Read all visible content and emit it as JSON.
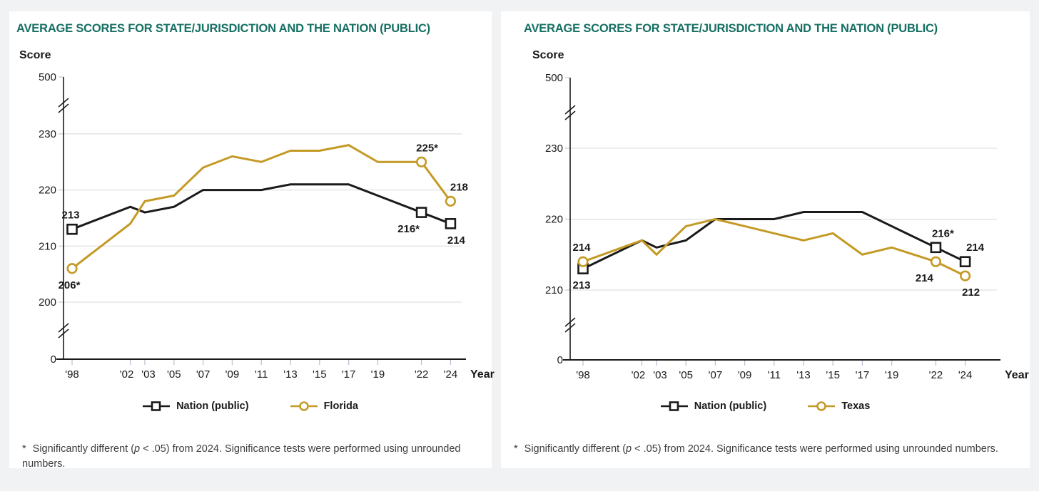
{
  "page": {
    "background": "#f1f2f4",
    "panel_background": "#ffffff"
  },
  "colors": {
    "title_teal": "#166f63",
    "gold": "#c49a26",
    "line_black": "#1a1a1a",
    "gridline": "#d8d8d8",
    "axis": "#1a1a1a",
    "x_tick": "#b9c3d2",
    "y_tick_stub": "#c8cdd4",
    "footnote_text": "#3e3e3e"
  },
  "charts": [
    {
      "title": "AVERAGE SCORES FOR STATE/JURISDICTION AND THE NATION (PUBLIC)",
      "y_axis_label": "Score",
      "x_axis_label": "Year",
      "chart_data": {
        "type": "line",
        "broken_y_axis": true,
        "y_ticks": [
          0,
          200,
          210,
          220,
          230,
          500
        ],
        "y_gridlines": [
          200,
          210,
          220,
          230
        ],
        "x": [
          1998,
          2002,
          2003,
          2005,
          2007,
          2009,
          2011,
          2013,
          2015,
          2017,
          2019,
          2022,
          2024
        ],
        "x_tick_labels": [
          "'98",
          "'02",
          "'03",
          "'05",
          "'07",
          "'09",
          "'11",
          "'13",
          "'15",
          "'17",
          "'19",
          "'22",
          "'24"
        ],
        "marker_years": [
          1998,
          2022,
          2024
        ],
        "series": [
          {
            "name": "Nation (public)",
            "marker": "square",
            "color": "#1a1a1a",
            "values": [
              213,
              217,
              216,
              217,
              220,
              220,
              220,
              221,
              221,
              221,
              219,
              216,
              214
            ]
          },
          {
            "name": "Florida",
            "marker": "circle",
            "color": "#c49a26",
            "values": [
              206,
              214,
              218,
              219,
              224,
              226,
              225,
              227,
              227,
              228,
              225,
              225,
              218
            ]
          }
        ],
        "annotations": [
          {
            "series": 0,
            "year": 1998,
            "text": "213",
            "position": "above",
            "dx": -2
          },
          {
            "series": 1,
            "year": 1998,
            "text": "206*",
            "position": "below",
            "dx": -4
          },
          {
            "series": 1,
            "year": 2022,
            "text": "225*",
            "position": "above",
            "dx": 8
          },
          {
            "series": 0,
            "year": 2022,
            "text": "216*",
            "position": "below",
            "dx": -18
          },
          {
            "series": 1,
            "year": 2024,
            "text": "218",
            "position": "above",
            "dx": 12
          },
          {
            "series": 0,
            "year": 2024,
            "text": "214",
            "position": "below",
            "dx": 8
          }
        ]
      },
      "legend": [
        {
          "label": "Nation (public)",
          "marker": "square",
          "color": "#1a1a1a"
        },
        {
          "label": "Florida",
          "marker": "circle",
          "color": "#c49a26"
        }
      ],
      "footnote": {
        "star": "*",
        "text_before_italic": "Significantly different (",
        "italic": "p",
        "text_after_italic": " < .05) from 2024. Significance tests were performed using unrounded numbers."
      }
    },
    {
      "title": "AVERAGE SCORES FOR STATE/JURISDICTION AND THE NATION (PUBLIC)",
      "y_axis_label": "Score",
      "x_axis_label": "Year",
      "chart_data": {
        "type": "line",
        "broken_y_axis": true,
        "y_ticks": [
          0,
          210,
          220,
          230,
          500
        ],
        "y_gridlines": [
          210,
          220,
          230
        ],
        "x": [
          1998,
          2002,
          2003,
          2005,
          2007,
          2009,
          2011,
          2013,
          2015,
          2017,
          2019,
          2022,
          2024
        ],
        "x_tick_labels": [
          "'98",
          "'02",
          "'03",
          "'05",
          "'07",
          "'09",
          "'11",
          "'13",
          "'15",
          "'17",
          "'19",
          "'22",
          "'24"
        ],
        "marker_years": [
          1998,
          2022,
          2024
        ],
        "series": [
          {
            "name": "Nation (public)",
            "marker": "square",
            "color": "#1a1a1a",
            "values": [
              213,
              217,
              216,
              217,
              220,
              220,
              220,
              221,
              221,
              221,
              219,
              216,
              214
            ]
          },
          {
            "name": "Texas",
            "marker": "circle",
            "color": "#c49a26",
            "values": [
              214,
              217,
              215,
              219,
              220,
              219,
              218,
              217,
              218,
              215,
              216,
              214,
              212
            ]
          }
        ],
        "annotations": [
          {
            "series": 1,
            "year": 1998,
            "text": "214",
            "position": "above",
            "dx": -2
          },
          {
            "series": 0,
            "year": 1998,
            "text": "213",
            "position": "below",
            "dx": -2
          },
          {
            "series": 0,
            "year": 2022,
            "text": "216*",
            "position": "above",
            "dx": 10
          },
          {
            "series": 1,
            "year": 2022,
            "text": "214",
            "position": "below",
            "dx": -16
          },
          {
            "series": 0,
            "year": 2024,
            "text": "214",
            "position": "above",
            "dx": 14
          },
          {
            "series": 1,
            "year": 2024,
            "text": "212",
            "position": "below",
            "dx": 8
          }
        ]
      },
      "legend": [
        {
          "label": "Nation (public)",
          "marker": "square",
          "color": "#1a1a1a"
        },
        {
          "label": "Texas",
          "marker": "circle",
          "color": "#c49a26"
        }
      ],
      "footnote": {
        "star": "*",
        "text_before_italic": "Significantly different (",
        "italic": "p",
        "text_after_italic": " < .05) from 2024. Significance tests were performed using unrounded numbers."
      }
    }
  ]
}
